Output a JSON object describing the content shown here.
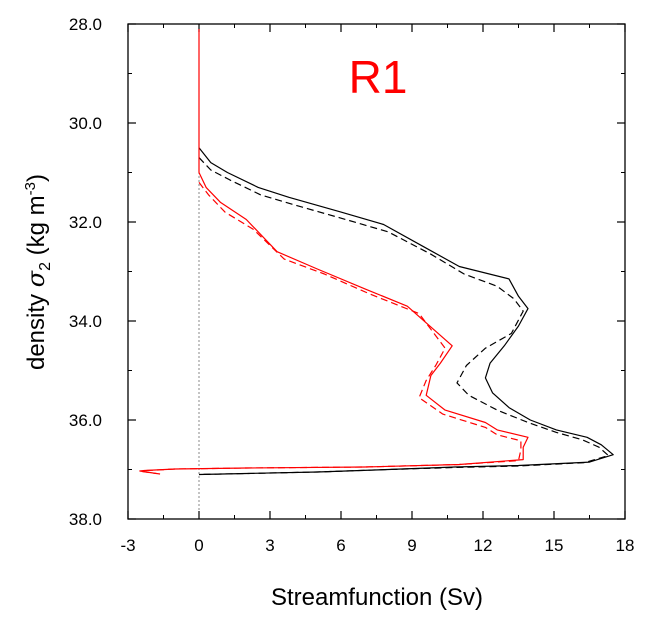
{
  "chart_data": {
    "type": "line",
    "panel_label": "R1",
    "xlabel": "Streamfunction (Sv)",
    "ylabel": "density σ2 (kg m-3)",
    "xlim": [
      -3,
      18
    ],
    "ylim": [
      28.0,
      38.0
    ],
    "y_inverted": true,
    "x_ticks": [
      "-3",
      "0",
      "3",
      "6",
      "9",
      "12",
      "15",
      "18"
    ],
    "y_ticks": [
      "28.0",
      "30.0",
      "32.0",
      "34.0",
      "36.0",
      "38.0"
    ],
    "zero_line": true,
    "series": [
      {
        "color": "#000000",
        "dash": "solid",
        "points": [
          [
            0,
            30.5
          ],
          [
            0.5,
            30.8
          ],
          [
            1.2,
            31.0
          ],
          [
            2.5,
            31.3
          ],
          [
            3.8,
            31.5
          ],
          [
            6,
            31.8
          ],
          [
            7.8,
            32.05
          ],
          [
            9.5,
            32.5
          ],
          [
            11,
            32.9
          ],
          [
            13.1,
            33.15
          ],
          [
            13.5,
            33.5
          ],
          [
            13.9,
            33.75
          ],
          [
            13.5,
            34.1
          ],
          [
            12.9,
            34.5
          ],
          [
            12.3,
            34.85
          ],
          [
            12.1,
            35.15
          ],
          [
            12.4,
            35.45
          ],
          [
            13.1,
            35.75
          ],
          [
            14.0,
            36.0
          ],
          [
            15.1,
            36.2
          ],
          [
            16.4,
            36.35
          ],
          [
            17.0,
            36.5
          ],
          [
            17.5,
            36.7
          ],
          [
            16.5,
            36.85
          ],
          [
            13.5,
            36.92
          ],
          [
            10.8,
            36.95
          ],
          [
            8,
            37.0
          ],
          [
            5,
            37.05
          ],
          [
            2,
            37.08
          ],
          [
            0,
            37.1
          ]
        ]
      },
      {
        "color": "#000000",
        "dash": "dashed",
        "points": [
          [
            0,
            30.7
          ],
          [
            0.5,
            30.95
          ],
          [
            1.3,
            31.15
          ],
          [
            2.6,
            31.45
          ],
          [
            4,
            31.65
          ],
          [
            6.2,
            31.95
          ],
          [
            8,
            32.2
          ],
          [
            9.8,
            32.65
          ],
          [
            11.2,
            33.05
          ],
          [
            12.6,
            33.3
          ],
          [
            13.3,
            33.55
          ],
          [
            13.7,
            33.8
          ],
          [
            13.2,
            34.25
          ],
          [
            12.1,
            34.55
          ],
          [
            11.3,
            34.9
          ],
          [
            10.9,
            35.25
          ],
          [
            11.4,
            35.5
          ],
          [
            12.6,
            35.8
          ],
          [
            13.9,
            36.05
          ],
          [
            15.1,
            36.25
          ],
          [
            16.2,
            36.4
          ],
          [
            16.9,
            36.55
          ],
          [
            17.3,
            36.72
          ],
          [
            16.3,
            36.86
          ],
          [
            13.5,
            36.93
          ],
          [
            10.8,
            36.96
          ],
          [
            8,
            37.0
          ],
          [
            5,
            37.05
          ],
          [
            2,
            37.08
          ],
          [
            0,
            37.1
          ]
        ]
      },
      {
        "color": "#ff0000",
        "dash": "solid",
        "points": [
          [
            0,
            28.1
          ],
          [
            0,
            28.6
          ],
          [
            0,
            29.4
          ],
          [
            0,
            30.2
          ],
          [
            0,
            31.0
          ],
          [
            0.3,
            31.3
          ],
          [
            0.9,
            31.6
          ],
          [
            2,
            31.95
          ],
          [
            3.3,
            32.6
          ],
          [
            5,
            32.95
          ],
          [
            7,
            33.35
          ],
          [
            8.8,
            33.7
          ],
          [
            10.7,
            34.5
          ],
          [
            10.2,
            34.85
          ],
          [
            9.8,
            35.1
          ],
          [
            9.6,
            35.5
          ],
          [
            10.4,
            35.8
          ],
          [
            12.1,
            36.05
          ],
          [
            12.6,
            36.2
          ],
          [
            13.9,
            36.35
          ],
          [
            13.7,
            36.55
          ],
          [
            13.7,
            36.8
          ],
          [
            11,
            36.9
          ],
          [
            7,
            36.95
          ],
          [
            2,
            36.97
          ],
          [
            -1,
            36.99
          ],
          [
            -2.3,
            37.02
          ],
          [
            -2.5,
            37.03
          ],
          [
            -1.8,
            37.08
          ]
        ]
      },
      {
        "color": "#ff0000",
        "dash": "dashed",
        "points": [
          [
            0,
            31.2
          ],
          [
            0.4,
            31.45
          ],
          [
            1.1,
            31.8
          ],
          [
            2.3,
            32.15
          ],
          [
            3.6,
            32.75
          ],
          [
            5.3,
            33.05
          ],
          [
            7.2,
            33.45
          ],
          [
            9.3,
            33.85
          ],
          [
            10.4,
            34.55
          ],
          [
            10.0,
            34.9
          ],
          [
            9.6,
            35.2
          ],
          [
            9.3,
            35.55
          ],
          [
            10.3,
            35.88
          ],
          [
            12.1,
            36.15
          ],
          [
            12.6,
            36.3
          ],
          [
            13.6,
            36.42
          ],
          [
            13.6,
            36.6
          ],
          [
            13.5,
            36.82
          ],
          [
            11,
            36.9
          ],
          [
            7,
            36.95
          ],
          [
            2,
            36.97
          ],
          [
            -1,
            36.99
          ],
          [
            -2.2,
            37.02
          ],
          [
            -2.4,
            37.04
          ],
          [
            -1.5,
            37.1
          ]
        ]
      }
    ]
  }
}
